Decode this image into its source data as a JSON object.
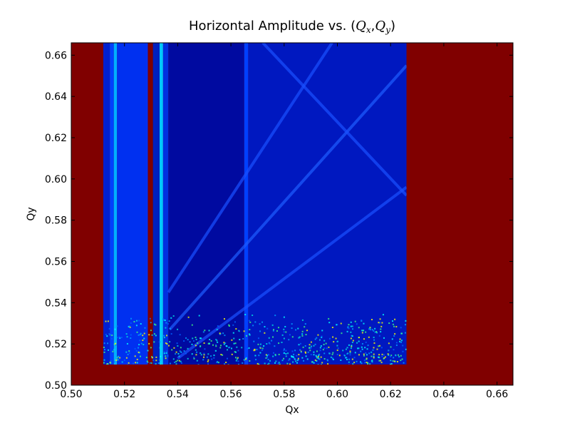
{
  "chart_data": {
    "type": "heatmap",
    "title": {
      "prefix": "Horizontal Amplitude vs. (",
      "q1": "Q",
      "sub1": "x",
      "comma": ",",
      "q2": "Q",
      "sub2": "y",
      "suffix": ")"
    },
    "xlabel": "Qx",
    "ylabel": "Qy",
    "xlim": [
      0.5,
      0.666
    ],
    "ylim": [
      0.5,
      0.666
    ],
    "xticks": [
      "0.50",
      "0.52",
      "0.54",
      "0.56",
      "0.58",
      "0.60",
      "0.62",
      "0.64",
      "0.66"
    ],
    "yticks": [
      "0.50",
      "0.52",
      "0.54",
      "0.56",
      "0.58",
      "0.60",
      "0.62",
      "0.64",
      "0.66"
    ],
    "colormap": "jet",
    "background_color": "#800000",
    "data_region": {
      "qx": [
        0.512,
        0.626
      ],
      "qy": [
        0.51,
        0.666
      ]
    },
    "bands": [
      {
        "qx": [
          0.512,
          0.5145
        ],
        "color": "#0020d0"
      },
      {
        "qx": [
          0.5145,
          0.516
        ],
        "color": "#0040ff"
      },
      {
        "qx": [
          0.516,
          0.5172
        ],
        "color": "#00b0ff"
      },
      {
        "qx": [
          0.5172,
          0.5288
        ],
        "color": "#0030f0"
      },
      {
        "qx": [
          0.5288,
          0.5307
        ],
        "color": "#800000"
      },
      {
        "qx": [
          0.5307,
          0.5332
        ],
        "color": "#0020c0"
      },
      {
        "qx": [
          0.5332,
          0.5345
        ],
        "color": "#00c8ff"
      },
      {
        "qx": [
          0.5345,
          0.5365
        ],
        "color": "#0030e0"
      },
      {
        "qx": [
          0.5365,
          0.565
        ],
        "color": "#000aa0"
      },
      {
        "qx": [
          0.565,
          0.5665
        ],
        "color": "#0040ff"
      },
      {
        "qx": [
          0.5665,
          0.626
        ],
        "color": "#0018c0"
      }
    ],
    "resonance_lines": [
      {
        "from": [
          0.537,
          0.527
        ],
        "to": [
          0.626,
          0.655
        ],
        "color": "#1e5cff"
      },
      {
        "from": [
          0.5365,
          0.545
        ],
        "to": [
          0.598,
          0.666
        ],
        "color": "#1a50ff"
      },
      {
        "from": [
          0.572,
          0.666
        ],
        "to": [
          0.626,
          0.592
        ],
        "color": "#1a50ff"
      },
      {
        "from": [
          0.54,
          0.513
        ],
        "to": [
          0.626,
          0.596
        ],
        "color": "#1a50ff"
      }
    ],
    "noise_band_qy": [
      0.51,
      0.535
    ]
  }
}
